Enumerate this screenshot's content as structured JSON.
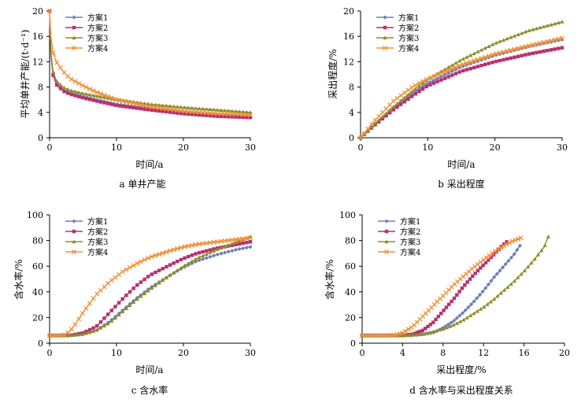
{
  "chart_data": [
    {
      "id": "a",
      "type": "line",
      "caption": "a  单井产能",
      "xlabel": "时间/a",
      "ylabel": "平均单井产能/(t·d⁻¹)",
      "xlim": [
        0,
        30
      ],
      "ylim": [
        0,
        20
      ],
      "xticks": [
        0,
        10,
        20,
        30
      ],
      "yticks": [
        0,
        4,
        8,
        12,
        16,
        20
      ],
      "legend_position": "top-left",
      "series": [
        {
          "name": "方案1",
          "color": "#6B7FC0",
          "marker": "diamond",
          "x": [
            0,
            0.2,
            0.5,
            1,
            2,
            3,
            5,
            7,
            10,
            15,
            20,
            25,
            28
          ],
          "y": [
            20,
            13,
            10,
            8.5,
            7.6,
            7.1,
            6.5,
            6.0,
            5.3,
            4.6,
            4.0,
            3.6,
            3.4
          ]
        },
        {
          "name": "方案2",
          "color": "#B8306E",
          "marker": "square",
          "x": [
            0,
            0.2,
            0.5,
            1,
            2,
            3,
            5,
            7,
            10,
            15,
            20,
            25,
            30
          ],
          "y": [
            20,
            13,
            10,
            8.4,
            7.4,
            6.9,
            6.3,
            5.8,
            5.1,
            4.4,
            3.8,
            3.4,
            3.2
          ]
        },
        {
          "name": "方案3",
          "color": "#8E8E2A",
          "marker": "triangle",
          "x": [
            0,
            0.2,
            0.5,
            1,
            2,
            3,
            5,
            7,
            10,
            15,
            20,
            25,
            30
          ],
          "y": [
            20,
            13.5,
            10.5,
            9.0,
            8.0,
            7.5,
            7.0,
            6.6,
            6.0,
            5.3,
            4.8,
            4.4,
            4.0
          ]
        },
        {
          "name": "方案4",
          "color": "#F0913A",
          "marker": "x",
          "x": [
            0,
            0.2,
            0.5,
            1,
            2,
            3,
            5,
            7,
            10,
            15,
            20,
            25,
            30
          ],
          "y": [
            20,
            16,
            13.5,
            12,
            10.5,
            9.4,
            8.2,
            7.2,
            6.0,
            4.9,
            4.2,
            3.8,
            3.6
          ]
        }
      ]
    },
    {
      "id": "b",
      "type": "line",
      "caption": "b  采出程度",
      "xlabel": "时间/a",
      "ylabel": "采出程度/%",
      "xlim": [
        0,
        30
      ],
      "ylim": [
        0,
        20
      ],
      "xticks": [
        0,
        10,
        20,
        30
      ],
      "yticks": [
        0,
        4,
        8,
        12,
        16,
        20
      ],
      "legend_position": "top-left",
      "series": [
        {
          "name": "方案1",
          "color": "#6B7FC0",
          "marker": "diamond",
          "x": [
            0,
            2,
            5,
            8,
            10,
            15,
            20,
            25,
            30
          ],
          "y": [
            0,
            2.0,
            4.8,
            7.2,
            8.6,
            11.2,
            13.0,
            14.4,
            15.5
          ]
        },
        {
          "name": "方案2",
          "color": "#B8306E",
          "marker": "square",
          "x": [
            0,
            2,
            5,
            8,
            10,
            15,
            20,
            25,
            30
          ],
          "y": [
            0,
            1.9,
            4.5,
            6.8,
            8.2,
            10.5,
            12.0,
            13.2,
            14.2
          ]
        },
        {
          "name": "方案3",
          "color": "#8E8E2A",
          "marker": "triangle",
          "x": [
            0,
            2,
            5,
            8,
            10,
            15,
            20,
            25,
            30
          ],
          "y": [
            0,
            2.1,
            5.0,
            7.6,
            9.2,
            12.3,
            14.9,
            16.9,
            18.3
          ]
        },
        {
          "name": "方案4",
          "color": "#F0913A",
          "marker": "x",
          "x": [
            0,
            2,
            5,
            8,
            10,
            15,
            20,
            25,
            30
          ],
          "y": [
            0,
            2.6,
            5.9,
            8.2,
            9.3,
            11.5,
            13.2,
            14.5,
            15.7
          ]
        }
      ]
    },
    {
      "id": "c",
      "type": "line",
      "caption": "c  含水率",
      "xlabel": "时间/a",
      "ylabel": "含水率/%",
      "xlim": [
        0,
        30
      ],
      "ylim": [
        0,
        100
      ],
      "xticks": [
        0,
        10,
        20,
        30
      ],
      "yticks": [
        0,
        20,
        40,
        60,
        80,
        100
      ],
      "legend_position": "top-left",
      "series": [
        {
          "name": "方案1",
          "color": "#6B7FC0",
          "marker": "diamond",
          "x": [
            0,
            3,
            5,
            7,
            9,
            11,
            13,
            15,
            18,
            20,
            22,
            25,
            28,
            30
          ],
          "y": [
            6,
            6,
            7,
            10,
            17,
            26,
            35,
            43,
            53,
            59,
            64,
            69,
            73,
            75
          ]
        },
        {
          "name": "方案2",
          "color": "#B8306E",
          "marker": "square",
          "x": [
            0,
            3,
            5,
            7,
            9,
            11,
            13,
            15,
            18,
            20,
            22,
            25,
            28,
            30
          ],
          "y": [
            6,
            6,
            8,
            13,
            24,
            35,
            45,
            53,
            61,
            66,
            70,
            74,
            77,
            79
          ]
        },
        {
          "name": "方案3",
          "color": "#8E8E2A",
          "marker": "triangle",
          "x": [
            0,
            3,
            5,
            7,
            9,
            11,
            13,
            15,
            18,
            20,
            22,
            25,
            28,
            30
          ],
          "y": [
            6,
            6,
            7,
            10,
            16,
            25,
            34,
            42,
            53,
            60,
            66,
            73,
            79,
            83
          ]
        },
        {
          "name": "方案4",
          "color": "#F0913A",
          "marker": "x",
          "x": [
            0,
            2,
            3,
            4,
            5,
            7,
            9,
            11,
            13,
            15,
            18,
            20,
            22,
            25,
            28,
            30
          ],
          "y": [
            6,
            6,
            9,
            16,
            24,
            38,
            48,
            56,
            62,
            67,
            72,
            75,
            77,
            79,
            81,
            82
          ]
        }
      ]
    },
    {
      "id": "d",
      "type": "line",
      "caption": "d  含水率与采出程度关系",
      "xlabel": "采出程度/%",
      "ylabel": "含水率/%",
      "xlim": [
        0,
        20
      ],
      "ylim": [
        0,
        100
      ],
      "xticks": [
        0,
        4,
        8,
        12,
        16,
        20
      ],
      "yticks": [
        0,
        20,
        40,
        60,
        80,
        100
      ],
      "legend_position": "top-left",
      "series": [
        {
          "name": "方案1",
          "color": "#6B7FC0",
          "marker": "diamond",
          "x": [
            0,
            2,
            4,
            5,
            6,
            7,
            8,
            9,
            10,
            11,
            12,
            13,
            14,
            15,
            15.6
          ],
          "y": [
            6,
            6,
            6,
            6,
            7,
            8,
            12,
            17,
            24,
            32,
            41,
            51,
            60,
            69,
            76
          ]
        },
        {
          "name": "方案2",
          "color": "#B8306E",
          "marker": "square",
          "x": [
            0,
            2,
            4,
            5,
            6,
            7,
            8,
            9,
            10,
            11,
            12,
            13,
            14,
            14.3
          ],
          "y": [
            6,
            6,
            6,
            7,
            10,
            16,
            25,
            34,
            44,
            53,
            61,
            69,
            77,
            79
          ]
        },
        {
          "name": "方案3",
          "color": "#8E8E2A",
          "marker": "triangle",
          "x": [
            0,
            2,
            4,
            6,
            7,
            8,
            9,
            10,
            11,
            12,
            13,
            14,
            15,
            16,
            17,
            18,
            18.4
          ],
          "y": [
            6,
            6,
            6,
            7,
            9,
            11,
            14,
            18,
            23,
            28,
            34,
            41,
            48,
            56,
            65,
            75,
            83
          ]
        },
        {
          "name": "方案4",
          "color": "#F0913A",
          "marker": "x",
          "x": [
            0,
            2,
            3,
            4,
            5,
            6,
            7,
            8,
            9,
            10,
            11,
            12,
            13,
            14,
            15,
            15.7
          ],
          "y": [
            6,
            6,
            6,
            8,
            13,
            21,
            29,
            37,
            45,
            52,
            59,
            65,
            71,
            76,
            80,
            82
          ]
        }
      ]
    }
  ]
}
